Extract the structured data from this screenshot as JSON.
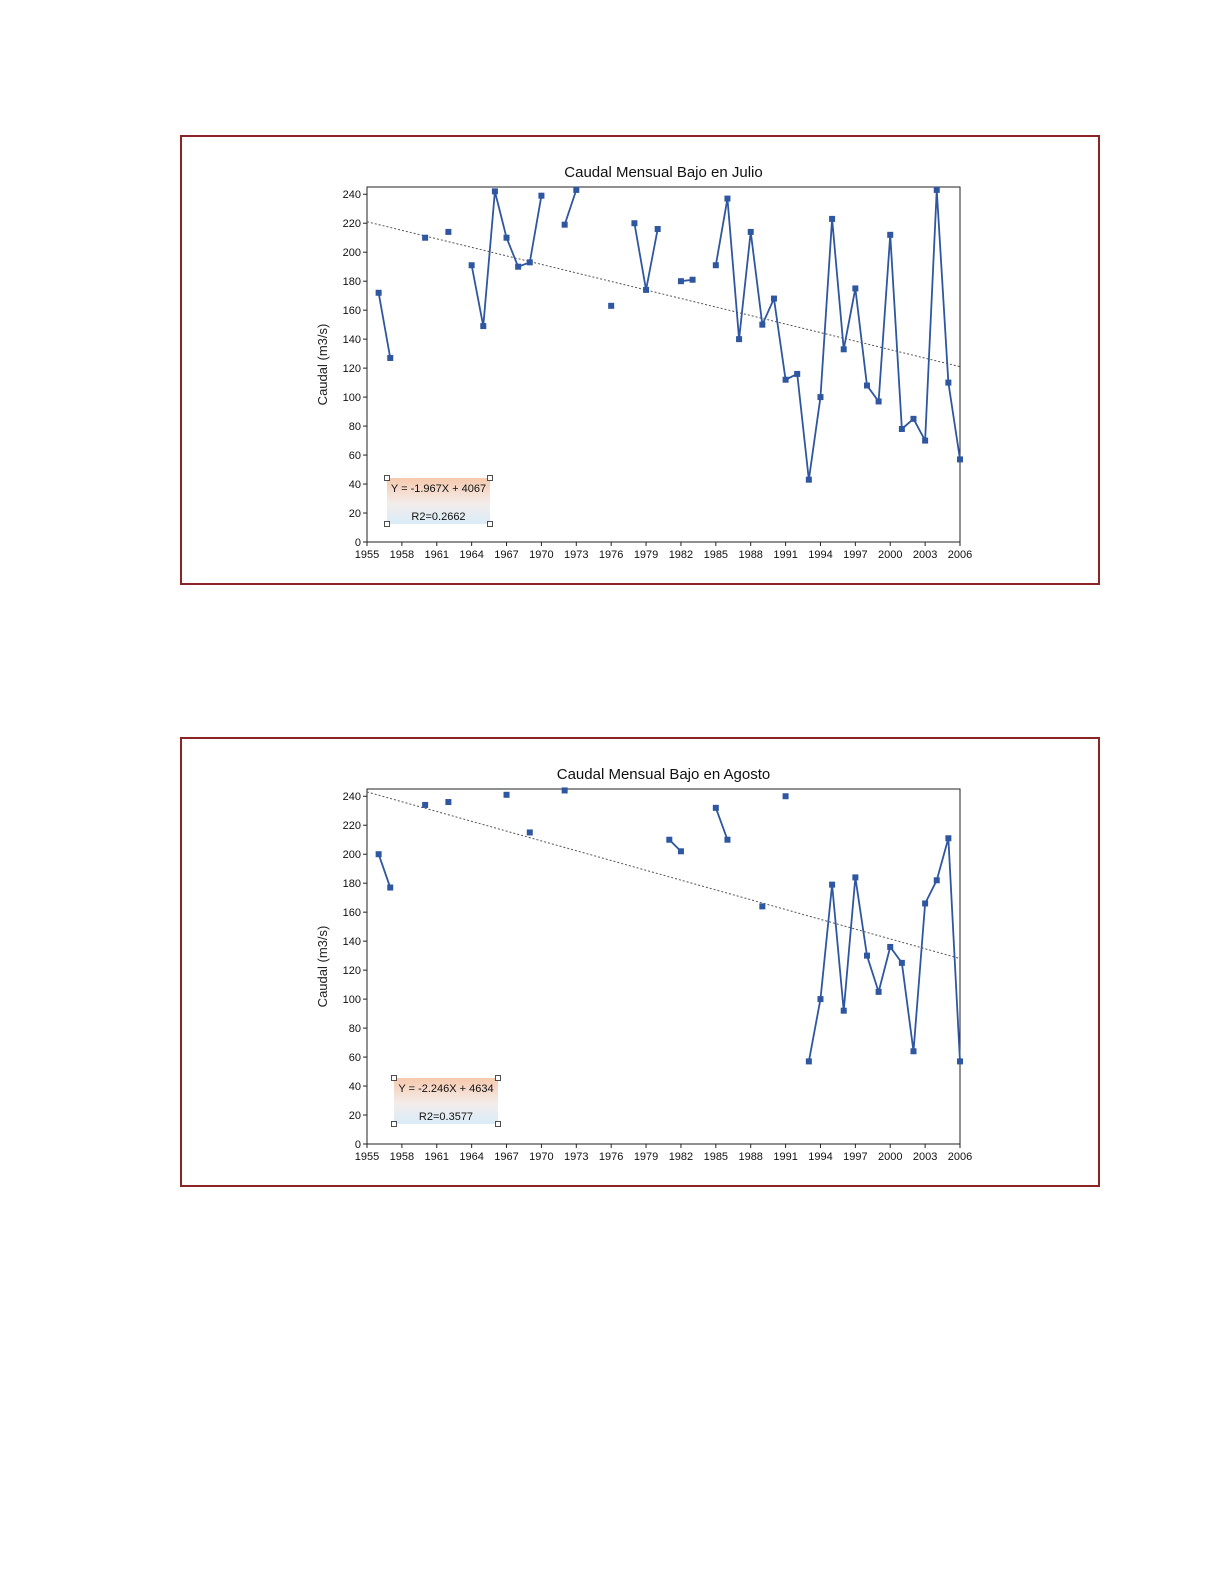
{
  "colors": {
    "frame": "#8b2525",
    "series": "#2f56a0",
    "trend": "#555555"
  },
  "chart_data": [
    {
      "type": "line",
      "title": "Caudal Mensual Bajo en Julio",
      "xlabel": "",
      "ylabel": "Caudal (m3/s)",
      "xlim": [
        1955,
        2006
      ],
      "ylim": [
        0,
        245
      ],
      "x_ticks": [
        "1955",
        "1958",
        "1961",
        "1964",
        "1967",
        "1970",
        "1973",
        "1976",
        "1979",
        "1982",
        "1985",
        "1988",
        "1991",
        "1994",
        "1997",
        "2000",
        "2003",
        "2006"
      ],
      "y_ticks": [
        "0",
        "20",
        "40",
        "60",
        "80",
        "100",
        "120",
        "140",
        "160",
        "180",
        "200",
        "220",
        "240"
      ],
      "series": [
        {
          "x": [
            1956,
            1957,
            1958,
            1959,
            1960,
            1961,
            1962,
            1963,
            1964,
            1965,
            1966,
            1967,
            1968,
            1969,
            1970,
            1971,
            1972,
            1973,
            1974,
            1975,
            1976,
            1977,
            1978,
            1979,
            1980,
            1981,
            1982,
            1983,
            1984,
            1985,
            1986,
            1987,
            1988,
            1989,
            1990,
            1991,
            1992,
            1993,
            1994,
            1995,
            1996,
            1997,
            1998,
            1999,
            2000,
            2001,
            2002,
            2003,
            2004,
            2005,
            2006
          ],
          "values": [
            172,
            127,
            null,
            null,
            210,
            null,
            214,
            null,
            191,
            149,
            242,
            210,
            190,
            193,
            239,
            null,
            219,
            243,
            null,
            null,
            163,
            null,
            220,
            174,
            216,
            null,
            180,
            181,
            null,
            191,
            237,
            140,
            214,
            150,
            168,
            112,
            116,
            43,
            100,
            223,
            133,
            175,
            108,
            97,
            212,
            78,
            85,
            70,
            243,
            110,
            57
          ]
        }
      ],
      "trendline": {
        "x": [
          1955,
          2006
        ],
        "values": [
          221,
          121
        ]
      },
      "equation": "Y = -1.967X + 4067",
      "r2": "R2=0.2662"
    },
    {
      "type": "line",
      "title": "Caudal Mensual Bajo en Agosto",
      "xlabel": "",
      "ylabel": "Caudal (m3/s)",
      "xlim": [
        1955,
        2006
      ],
      "ylim": [
        0,
        245
      ],
      "x_ticks": [
        "1955",
        "1958",
        "1961",
        "1964",
        "1967",
        "1970",
        "1973",
        "1976",
        "1979",
        "1982",
        "1985",
        "1988",
        "1991",
        "1994",
        "1997",
        "2000",
        "2003",
        "2006"
      ],
      "y_ticks": [
        "0",
        "20",
        "40",
        "60",
        "80",
        "100",
        "120",
        "140",
        "160",
        "180",
        "200",
        "220",
        "240"
      ],
      "series": [
        {
          "x": [
            1956,
            1957,
            1958,
            1959,
            1960,
            1961,
            1962,
            1963,
            1964,
            1965,
            1966,
            1967,
            1968,
            1969,
            1970,
            1971,
            1972,
            1973,
            1974,
            1975,
            1976,
            1977,
            1978,
            1979,
            1980,
            1981,
            1982,
            1983,
            1984,
            1985,
            1986,
            1987,
            1988,
            1989,
            1990,
            1991,
            1992,
            1993,
            1994,
            1995,
            1996,
            1997,
            1998,
            1999,
            2000,
            2001,
            2002,
            2003,
            2004,
            2005,
            2006
          ],
          "values": [
            200,
            177,
            null,
            null,
            234,
            null,
            236,
            null,
            null,
            null,
            null,
            241,
            null,
            215,
            null,
            null,
            244,
            null,
            null,
            null,
            null,
            null,
            null,
            null,
            null,
            210,
            202,
            null,
            null,
            232,
            210,
            null,
            null,
            164,
            null,
            240,
            null,
            57,
            100,
            179,
            92,
            184,
            130,
            105,
            136,
            125,
            64,
            166,
            182,
            211,
            57
          ]
        }
      ],
      "trendline": {
        "x": [
          1955,
          2006
        ],
        "values": [
          243,
          128
        ]
      },
      "equation": "Y = -2.246X + 4634",
      "r2": "R2=0.3577"
    }
  ]
}
